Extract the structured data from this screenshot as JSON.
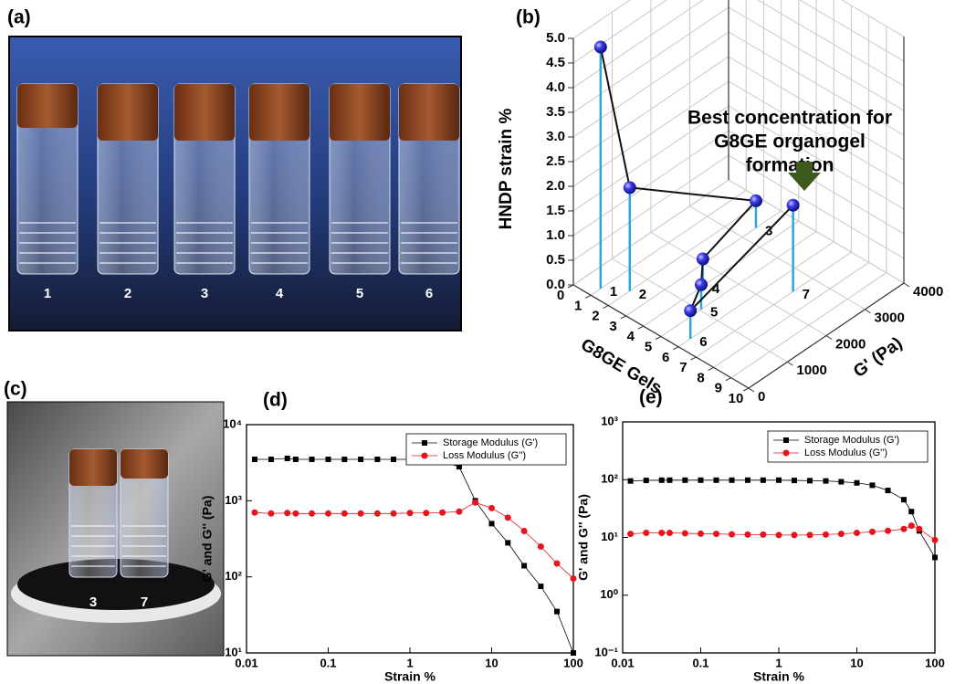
{
  "panels": {
    "a": {
      "label": "(a)",
      "vials": [
        "1",
        "2",
        "3",
        "4",
        "5",
        "6"
      ]
    },
    "c": {
      "label": "(c)",
      "vials": [
        "3",
        "7"
      ]
    }
  },
  "chart_data": [
    {
      "type": "scatter3d",
      "panel_label": "(b)",
      "x_label": "G8GE Gels",
      "y_label": "G' (Pa)",
      "z_label": "HNDP strain %",
      "x": [
        1,
        2,
        3,
        4,
        5,
        6,
        7
      ],
      "y": [
        250,
        550,
        3350,
        1530,
        1035,
        306,
        2500
      ],
      "z": [
        4.9,
        2.1,
        0.55,
        0.55,
        0.5,
        0.57,
        1.75
      ],
      "xlim": [
        0,
        10
      ],
      "xticks": [
        0,
        1,
        2,
        3,
        4,
        5,
        6,
        7,
        8,
        9,
        10
      ],
      "ylim": [
        0,
        4000
      ],
      "yticks": [
        0,
        1000,
        2000,
        3000,
        4000
      ],
      "zlim": [
        0,
        5
      ],
      "zticks": [
        {
          "value": 0,
          "label": "0.0"
        },
        {
          "value": 0.5,
          "label": "0.5"
        },
        {
          "value": 1,
          "label": "1.0"
        },
        {
          "value": 1.5,
          "label": "1.5"
        },
        {
          "value": 2,
          "label": "2.0"
        },
        {
          "value": 2.5,
          "label": "2.5"
        },
        {
          "value": 3,
          "label": "3.0"
        },
        {
          "value": 3.5,
          "label": "3.5"
        },
        {
          "value": 4,
          "label": "4.0"
        },
        {
          "value": 4.5,
          "label": "4.5"
        },
        {
          "value": 5,
          "label": "5.0"
        }
      ],
      "color": "#2a2ae0",
      "stem_color": "#2aa8e0",
      "grid": true,
      "annotation": [
        "Best concentration for",
        "G8GE organogel",
        "formation"
      ]
    },
    {
      "type": "line",
      "panel_label": "(d)",
      "log_x": true,
      "log_y": true,
      "x_label": "Strain %",
      "y_label": "G' and G'' (Pa)",
      "x": [
        0.0126,
        0.02,
        0.0316,
        0.04,
        0.063,
        0.1,
        0.158,
        0.25,
        0.4,
        0.63,
        1,
        1.58,
        2.5,
        4,
        6.3,
        10,
        15.8,
        25,
        40,
        63,
        100
      ],
      "series": [
        {
          "name": "Storage Modulus (G')",
          "color": "#000000",
          "marker": "square",
          "values": [
            3500,
            3500,
            3600,
            3500,
            3500,
            3500,
            3500,
            3500,
            3500,
            3500,
            3500,
            3500,
            3300,
            2800,
            1000,
            500,
            280,
            140,
            75,
            35,
            10
          ]
        },
        {
          "name": "Loss Modulus (G'')",
          "color": "#e8141c",
          "marker": "circle",
          "values": [
            700,
            680,
            690,
            680,
            680,
            680,
            680,
            680,
            680,
            680,
            690,
            690,
            700,
            720,
            950,
            800,
            600,
            400,
            250,
            150,
            95
          ]
        }
      ],
      "xlim": [
        0.01,
        100
      ],
      "xticks": [
        0.01,
        0.1,
        1,
        10,
        100
      ],
      "ylim": [
        10,
        10000
      ],
      "yticks": [
        {
          "value": 10,
          "label": "10¹"
        },
        {
          "value": 100,
          "label": "10²"
        },
        {
          "value": 1000,
          "label": "10³"
        },
        {
          "value": 10000,
          "label": "10⁴"
        }
      ],
      "legend": "top-right"
    },
    {
      "type": "line",
      "panel_label": "(e)",
      "log_x": true,
      "log_y": true,
      "x_label": "Strain %",
      "y_label": "G' and G'' (Pa)",
      "x": [
        0.0126,
        0.02,
        0.0316,
        0.04,
        0.063,
        0.1,
        0.158,
        0.25,
        0.4,
        0.63,
        1,
        1.58,
        2.5,
        4,
        6.3,
        10,
        15.8,
        25,
        40,
        50,
        63,
        100
      ],
      "series": [
        {
          "name": "Storage Modulus (G')",
          "color": "#000000",
          "marker": "square",
          "values": [
            95,
            97,
            98,
            98,
            98,
            98,
            98,
            98,
            98,
            98,
            98,
            97,
            96,
            95,
            92,
            88,
            80,
            65,
            45,
            28,
            13,
            4.5
          ]
        },
        {
          "name": "Loss Modulus (G'')",
          "color": "#e8141c",
          "marker": "circle",
          "values": [
            11.5,
            12,
            12,
            12,
            11.8,
            11.6,
            11.5,
            11.3,
            11.2,
            11.2,
            11,
            11,
            11,
            11.2,
            11.5,
            12,
            12.5,
            13,
            14,
            16,
            14,
            9
          ]
        }
      ],
      "xlim": [
        0.01,
        100
      ],
      "xticks": [
        0.01,
        0.1,
        1,
        10,
        100
      ],
      "ylim": [
        0.1,
        1000
      ],
      "yticks": [
        {
          "value": 0.1,
          "label": "10⁻¹"
        },
        {
          "value": 1,
          "label": "10⁰"
        },
        {
          "value": 10,
          "label": "10¹"
        },
        {
          "value": 100,
          "label": "10²"
        },
        {
          "value": 1000,
          "label": "10³"
        }
      ],
      "legend": "top-right"
    }
  ]
}
